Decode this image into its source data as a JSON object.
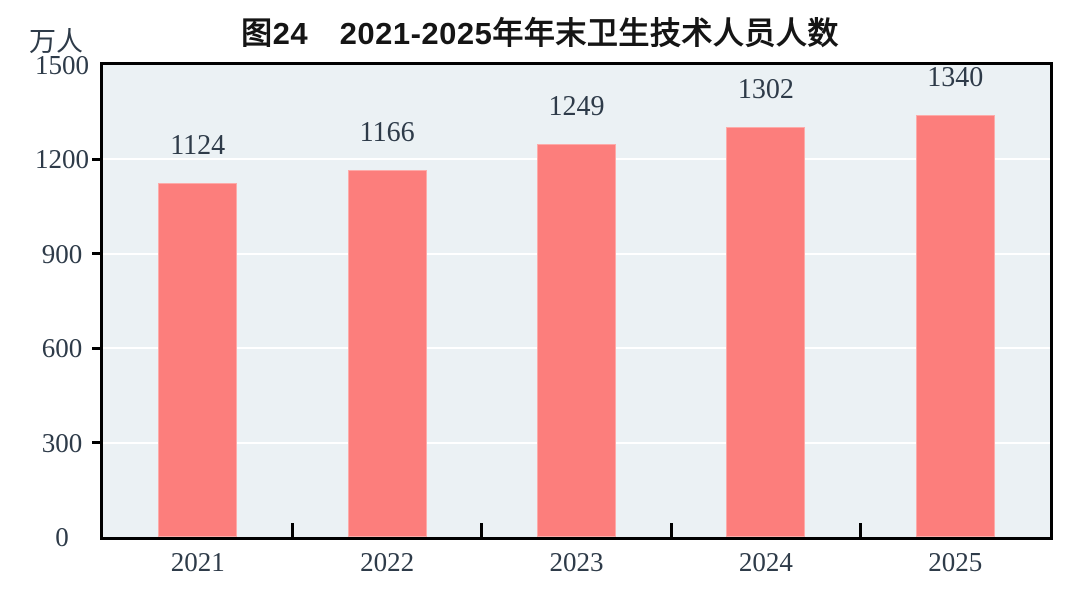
{
  "chart_data": {
    "type": "bar",
    "title": "图24　2021-2025年年末卫生技术人员人数",
    "unit_label": "万人",
    "categories": [
      "2021",
      "2022",
      "2023",
      "2024",
      "2025"
    ],
    "values": [
      1124,
      1166,
      1249,
      1302,
      1340
    ],
    "value_labels": [
      "1124",
      "1166",
      "1249",
      "1302",
      "1340"
    ],
    "xlabel": "",
    "ylabel": "万人",
    "ylim": [
      0,
      1500
    ],
    "yticks": [
      0,
      300,
      600,
      900,
      1200,
      1500
    ],
    "grid": "on",
    "gridlines_at": [
      300,
      600,
      900,
      1200
    ],
    "legend": "none",
    "colors": {
      "bar_fill": "#FC7E7C",
      "plot_background": "#EBF1F4",
      "gridline": "#FFFFFF",
      "axis_frame": "#000000",
      "title_text": "#151515",
      "tick_text": "#2E3B49"
    }
  }
}
